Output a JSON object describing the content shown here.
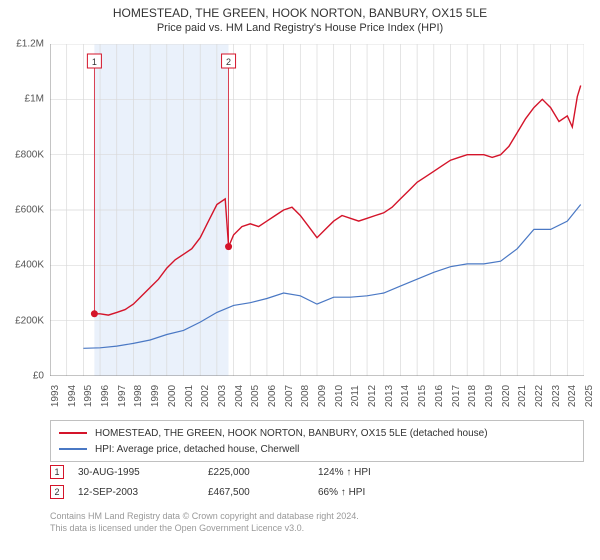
{
  "titles": {
    "main": "HOMESTEAD, THE GREEN, HOOK NORTON, BANBURY, OX15 5LE",
    "sub": "Price paid vs. HM Land Registry's House Price Index (HPI)"
  },
  "chart": {
    "type": "line",
    "background_color": "#ffffff",
    "grid_color": "#d9d9d9",
    "axis_color": "#888888",
    "highlight_band": {
      "start": 1995.66,
      "end": 2003.7,
      "fill": "#eaf1fb"
    },
    "ylim": [
      0,
      1200000
    ],
    "ytick_step": 200000,
    "y_tick_labels": [
      "£0",
      "£200K",
      "£400K",
      "£600K",
      "£800K",
      "£1M",
      "£1.2M"
    ],
    "xlim": [
      1993,
      2025
    ],
    "x_ticks": [
      1993,
      1994,
      1995,
      1996,
      1997,
      1998,
      1999,
      2000,
      2001,
      2002,
      2003,
      2004,
      2005,
      2006,
      2007,
      2008,
      2009,
      2010,
      2011,
      2012,
      2013,
      2014,
      2015,
      2016,
      2017,
      2018,
      2019,
      2020,
      2021,
      2022,
      2023,
      2024,
      2025
    ],
    "label_fontsize": 10,
    "series": [
      {
        "name": "property",
        "color": "#d4142a",
        "width": 1.4,
        "label": "HOMESTEAD, THE GREEN, HOOK NORTON, BANBURY, OX15 5LE (detached house)",
        "data": [
          [
            1995.66,
            225000
          ],
          [
            1996,
            225000
          ],
          [
            1996.5,
            220000
          ],
          [
            1997,
            230000
          ],
          [
            1997.5,
            240000
          ],
          [
            1998,
            260000
          ],
          [
            1998.5,
            290000
          ],
          [
            1999,
            320000
          ],
          [
            1999.5,
            350000
          ],
          [
            2000,
            390000
          ],
          [
            2000.5,
            420000
          ],
          [
            2001,
            440000
          ],
          [
            2001.5,
            460000
          ],
          [
            2002,
            500000
          ],
          [
            2002.5,
            560000
          ],
          [
            2003,
            620000
          ],
          [
            2003.5,
            640000
          ],
          [
            2003.7,
            467500
          ],
          [
            2004,
            510000
          ],
          [
            2004.5,
            540000
          ],
          [
            2005,
            550000
          ],
          [
            2005.5,
            540000
          ],
          [
            2006,
            560000
          ],
          [
            2006.5,
            580000
          ],
          [
            2007,
            600000
          ],
          [
            2007.5,
            610000
          ],
          [
            2008,
            580000
          ],
          [
            2008.5,
            540000
          ],
          [
            2009,
            500000
          ],
          [
            2009.5,
            530000
          ],
          [
            2010,
            560000
          ],
          [
            2010.5,
            580000
          ],
          [
            2011,
            570000
          ],
          [
            2011.5,
            560000
          ],
          [
            2012,
            570000
          ],
          [
            2012.5,
            580000
          ],
          [
            2013,
            590000
          ],
          [
            2013.5,
            610000
          ],
          [
            2014,
            640000
          ],
          [
            2014.5,
            670000
          ],
          [
            2015,
            700000
          ],
          [
            2015.5,
            720000
          ],
          [
            2016,
            740000
          ],
          [
            2016.5,
            760000
          ],
          [
            2017,
            780000
          ],
          [
            2017.5,
            790000
          ],
          [
            2018,
            800000
          ],
          [
            2018.5,
            800000
          ],
          [
            2019,
            800000
          ],
          [
            2019.5,
            790000
          ],
          [
            2020,
            800000
          ],
          [
            2020.5,
            830000
          ],
          [
            2021,
            880000
          ],
          [
            2021.5,
            930000
          ],
          [
            2022,
            970000
          ],
          [
            2022.5,
            1000000
          ],
          [
            2023,
            970000
          ],
          [
            2023.5,
            920000
          ],
          [
            2024,
            940000
          ],
          [
            2024.3,
            900000
          ],
          [
            2024.6,
            1010000
          ],
          [
            2024.8,
            1050000
          ]
        ]
      },
      {
        "name": "hpi",
        "color": "#4a78c4",
        "width": 1.2,
        "label": "HPI: Average price, detached house, Cherwell",
        "data": [
          [
            1995,
            100000
          ],
          [
            1996,
            102000
          ],
          [
            1997,
            108000
          ],
          [
            1998,
            118000
          ],
          [
            1999,
            130000
          ],
          [
            2000,
            150000
          ],
          [
            2001,
            165000
          ],
          [
            2002,
            195000
          ],
          [
            2003,
            230000
          ],
          [
            2004,
            255000
          ],
          [
            2005,
            265000
          ],
          [
            2006,
            280000
          ],
          [
            2007,
            300000
          ],
          [
            2008,
            290000
          ],
          [
            2009,
            260000
          ],
          [
            2010,
            285000
          ],
          [
            2011,
            285000
          ],
          [
            2012,
            290000
          ],
          [
            2013,
            300000
          ],
          [
            2014,
            325000
          ],
          [
            2015,
            350000
          ],
          [
            2016,
            375000
          ],
          [
            2017,
            395000
          ],
          [
            2018,
            405000
          ],
          [
            2019,
            405000
          ],
          [
            2020,
            415000
          ],
          [
            2021,
            460000
          ],
          [
            2022,
            530000
          ],
          [
            2023,
            530000
          ],
          [
            2024,
            560000
          ],
          [
            2024.8,
            620000
          ]
        ]
      }
    ],
    "sale_markers": [
      {
        "n": "1",
        "x": 1995.66,
        "y": 225000,
        "color": "#d4142a"
      },
      {
        "n": "2",
        "x": 2003.7,
        "y": 467500,
        "color": "#d4142a"
      }
    ]
  },
  "legend": {
    "border_color": "#c0c0c0"
  },
  "sales": [
    {
      "n": "1",
      "date": "30-AUG-1995",
      "price": "£225,000",
      "pct": "124% ↑ HPI",
      "marker_color": "#d4142a"
    },
    {
      "n": "2",
      "date": "12-SEP-2003",
      "price": "£467,500",
      "pct": "66% ↑ HPI",
      "marker_color": "#d4142a"
    }
  ],
  "footer": {
    "line1": "Contains HM Land Registry data © Crown copyright and database right 2024.",
    "line2": "This data is licensed under the Open Government Licence v3.0."
  }
}
